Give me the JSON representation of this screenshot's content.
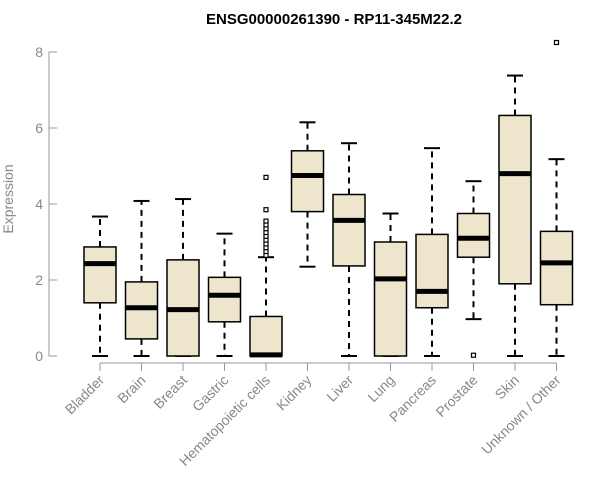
{
  "chart_data": {
    "type": "boxplot",
    "title": "ENSG00000261390 - RP11-345M22.2",
    "ylabel": "Expression",
    "xlabel": "",
    "ylim": [
      0,
      8.4
    ],
    "yticks": [
      0,
      2,
      4,
      6,
      8
    ],
    "box_fill": "#ede6cc",
    "categories": [
      "Bladder",
      "Brain",
      "Breast",
      "Gastric",
      "Hematopoietic cells",
      "Kidney",
      "Liver",
      "Lung",
      "Pancreas",
      "Prostate",
      "Skin",
      "Unknown / Other"
    ],
    "boxes": [
      {
        "min": 0,
        "q1": 1.4,
        "median": 2.43,
        "q3": 2.87,
        "max": 3.67,
        "outliers": []
      },
      {
        "min": 0,
        "q1": 0.45,
        "median": 1.27,
        "q3": 1.95,
        "max": 4.08,
        "outliers": []
      },
      {
        "min": 0,
        "q1": 0,
        "median": 1.22,
        "q3": 2.53,
        "max": 4.13,
        "outliers": []
      },
      {
        "min": 0,
        "q1": 0.9,
        "median": 1.6,
        "q3": 2.07,
        "max": 3.22,
        "outliers": []
      },
      {
        "min": 0,
        "q1": 0,
        "median": 0.03,
        "q3": 1.04,
        "max": 2.6,
        "outliers": [
          2.65,
          2.75,
          2.85,
          2.95,
          3.05,
          3.15,
          3.25,
          3.35,
          3.45,
          3.55,
          3.85,
          4.7
        ]
      },
      {
        "min": 2.35,
        "q1": 3.8,
        "median": 4.75,
        "q3": 5.4,
        "max": 6.15,
        "outliers": []
      },
      {
        "min": 0,
        "q1": 2.37,
        "median": 3.57,
        "q3": 4.25,
        "max": 5.6,
        "outliers": []
      },
      {
        "min": 0,
        "q1": 0,
        "median": 2.03,
        "q3": 3.0,
        "max": 3.75,
        "outliers": []
      },
      {
        "min": 0,
        "q1": 1.27,
        "median": 1.7,
        "q3": 3.2,
        "max": 5.47,
        "outliers": []
      },
      {
        "min": 0.97,
        "q1": 2.6,
        "median": 3.1,
        "q3": 3.75,
        "max": 4.6,
        "outliers": [
          0.02
        ]
      },
      {
        "min": 0,
        "q1": 1.9,
        "median": 4.8,
        "q3": 6.33,
        "max": 7.38,
        "outliers": []
      },
      {
        "min": 0,
        "q1": 1.35,
        "median": 2.45,
        "q3": 3.28,
        "max": 5.18,
        "outliers": [
          8.25
        ]
      }
    ]
  }
}
